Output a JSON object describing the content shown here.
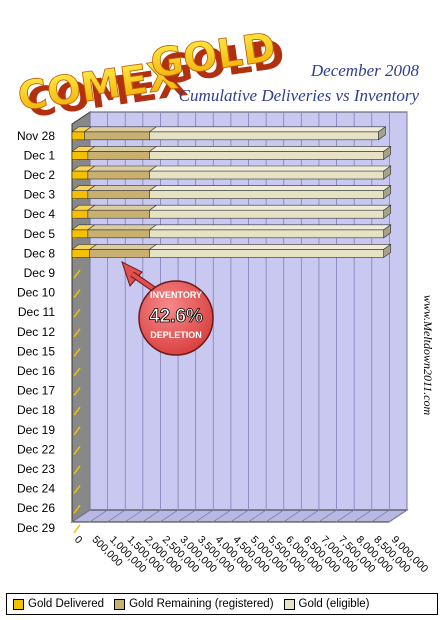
{
  "logo": {
    "word1": "COMEX",
    "word2": "GOLD"
  },
  "header": {
    "date": "December 2008",
    "subtitle": "Cumulative Deliveries vs Inventory"
  },
  "watermark": "www.Meltdown2011.com",
  "callout": {
    "top": "INVENTORY",
    "value": "42.6%",
    "bottom": "DEPLETION"
  },
  "colors": {
    "delivered": "#f5c000",
    "remaining": "#c8b070",
    "eligible": "#e6e2c4",
    "plot_bg": "#c8c8f0",
    "callout": "#e05050",
    "title_blue": "#2f3f8f"
  },
  "chart_data": {
    "type": "bar",
    "orientation": "horizontal",
    "stacked": true,
    "categories": [
      "Nov 28",
      "Dec 1",
      "Dec 2",
      "Dec 3",
      "Dec 4",
      "Dec 5",
      "Dec 8",
      "Dec 9",
      "Dec 10",
      "Dec 11",
      "Dec 12",
      "Dec 15",
      "Dec 16",
      "Dec 17",
      "Dec 18",
      "Dec 19",
      "Dec 22",
      "Dec 23",
      "Dec 24",
      "Dec 26",
      "Dec 29"
    ],
    "series": [
      {
        "name": "Gold Delivered",
        "values": [
          350000,
          450000,
          450000,
          450000,
          450000,
          450000,
          500000,
          null,
          null,
          null,
          null,
          null,
          null,
          null,
          null,
          null,
          null,
          null,
          null,
          null,
          null
        ]
      },
      {
        "name": "Gold Remaining (registered)",
        "values": [
          1850000,
          1750000,
          1750000,
          1750000,
          1750000,
          1750000,
          1700000,
          null,
          null,
          null,
          null,
          null,
          null,
          null,
          null,
          null,
          null,
          null,
          null,
          null,
          null
        ]
      },
      {
        "name": "Gold (eligible)",
        "values": [
          6500000,
          6650000,
          6650000,
          6650000,
          6650000,
          6650000,
          6650000,
          null,
          null,
          null,
          null,
          null,
          null,
          null,
          null,
          null,
          null,
          null,
          null,
          null,
          null
        ]
      }
    ],
    "x_ticks": [
      "0",
      "500,000",
      "1,000,000",
      "1,500,000",
      "2,000,000",
      "2,500,000",
      "3,000,000",
      "3,500,000",
      "4,000,000",
      "4,500,000",
      "5,000,000",
      "5,500,000",
      "6,000,000",
      "6,500,000",
      "7,000,000",
      "7,500,000",
      "8,000,000",
      "8,500,000",
      "9,000,000"
    ],
    "xlim": [
      0,
      9000000
    ],
    "grid": true,
    "legend": "bottom"
  }
}
